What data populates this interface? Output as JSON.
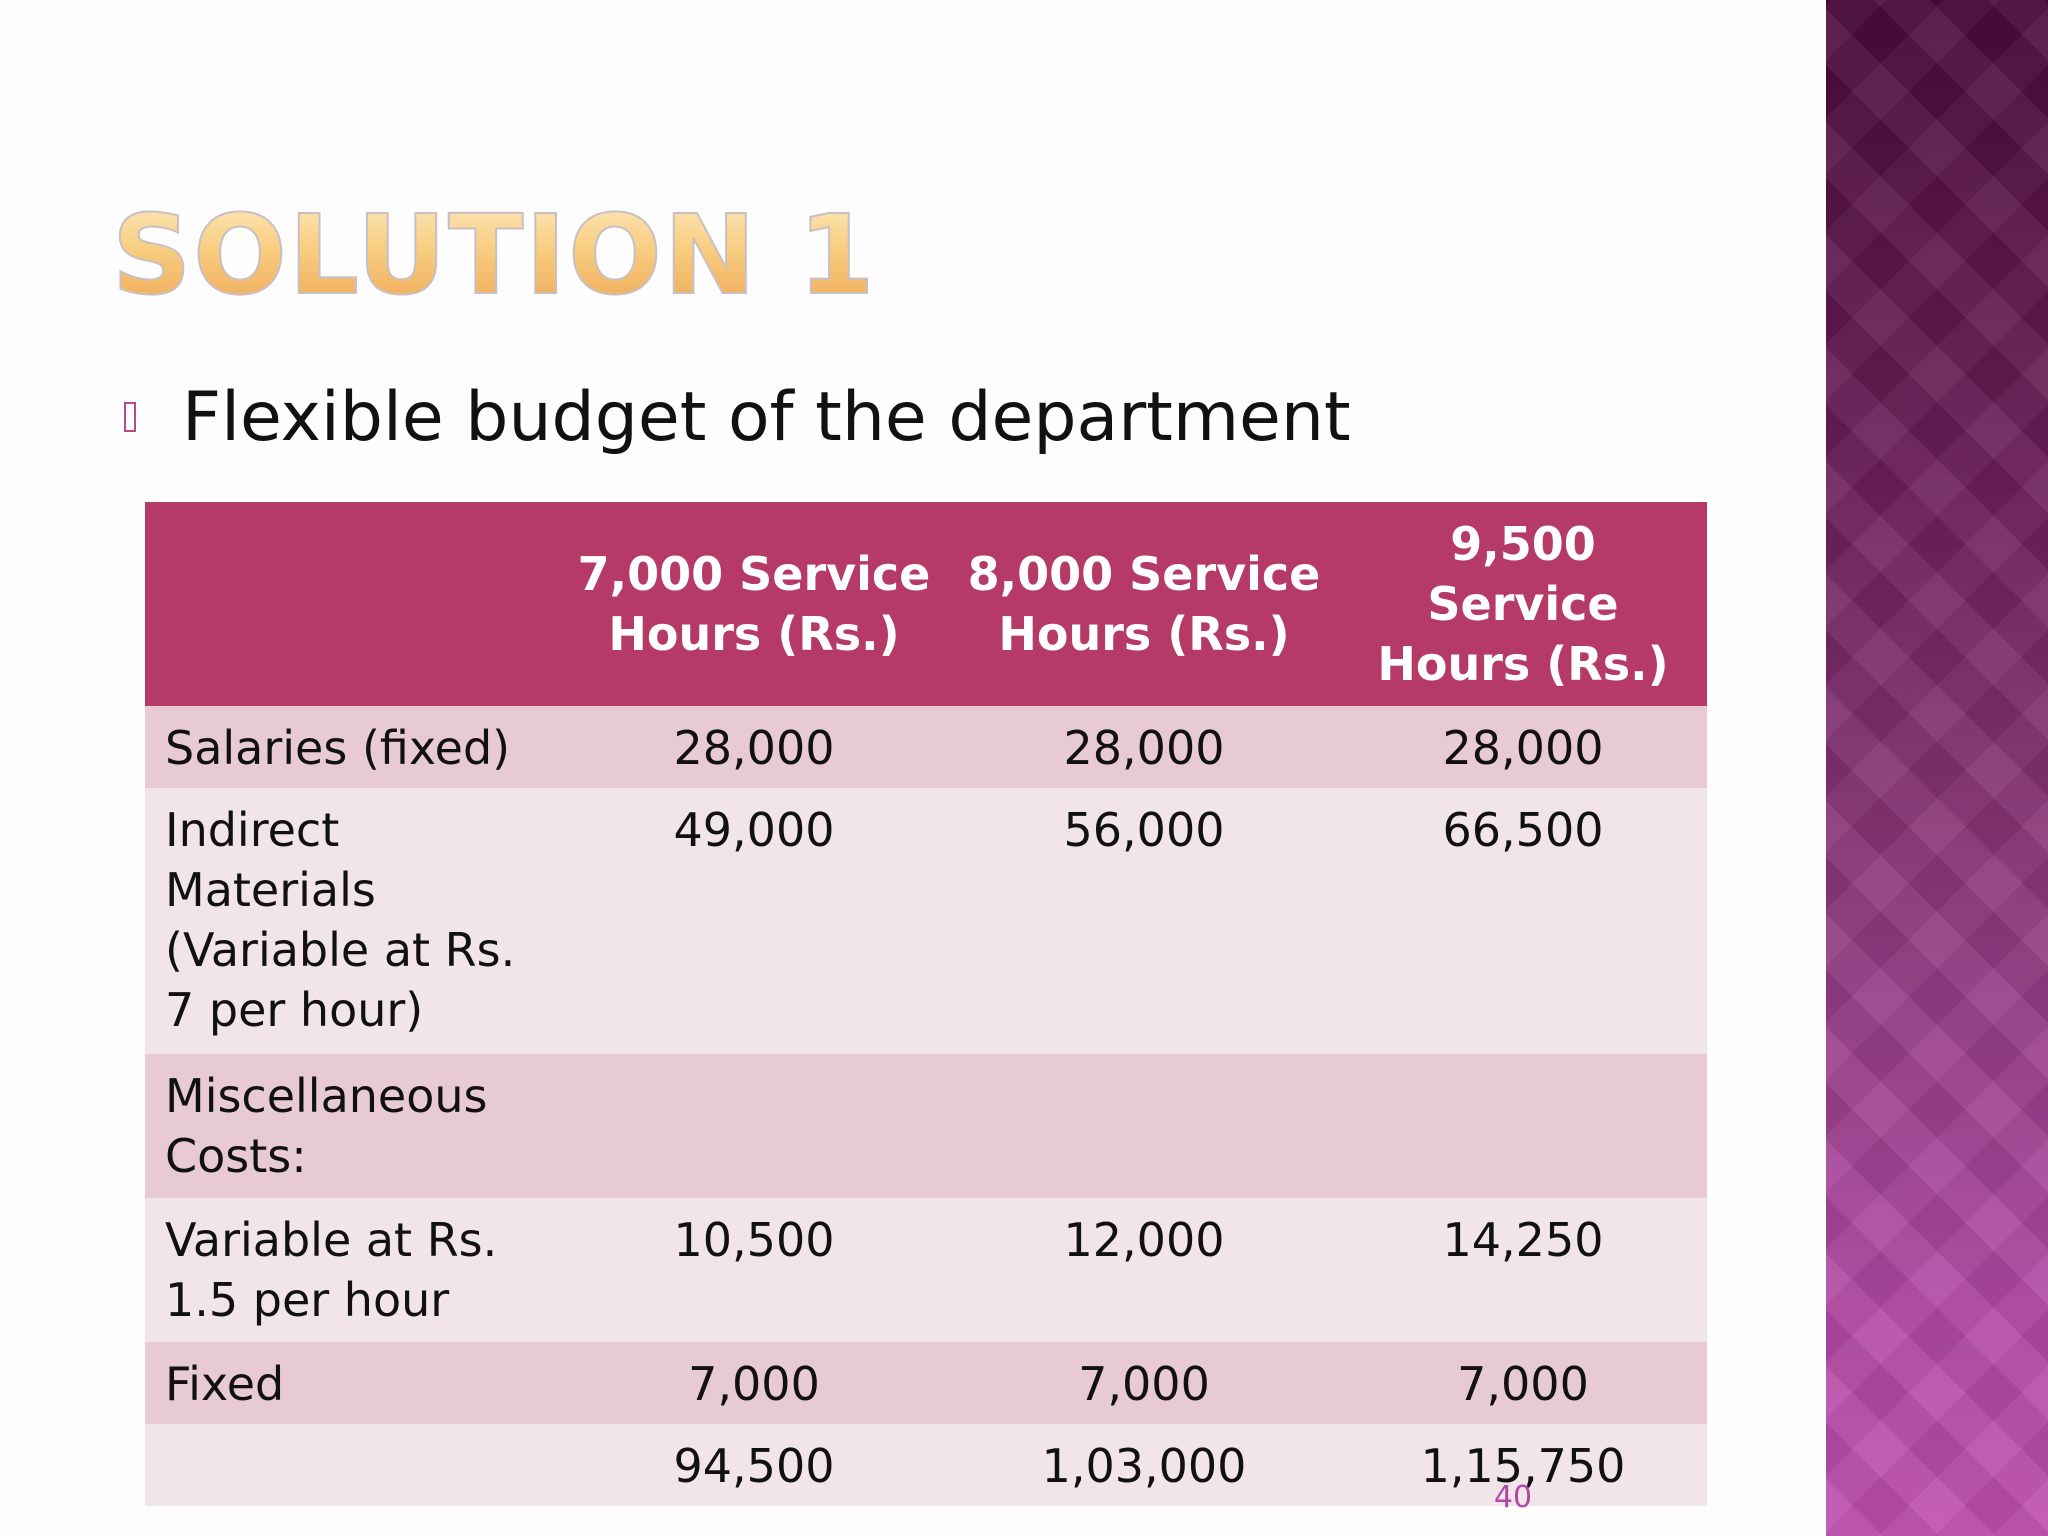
{
  "slide": {
    "title": "SOLUTION 1",
    "bullet": "Flexible budget of the department",
    "page_number": "40",
    "colors": {
      "title_fill": "#f6c06a",
      "header_bg": "#b53a68",
      "row_dark": "#e7cad4",
      "row_light": "#f2e5ea",
      "side_band": "#8e3a7f",
      "page_number": "#b049a6"
    }
  },
  "table": {
    "headers": [
      "",
      "7,000 Service Hours (Rs.)",
      "8,000 Service Hours (Rs.)",
      "9,500 Service Hours (Rs.)"
    ],
    "rows": [
      [
        "Salaries (fixed)",
        "28,000",
        "28,000",
        "28,000"
      ],
      [
        "Indirect Materials (Variable at Rs. 7 per hour)",
        "49,000",
        "56,000",
        "66,500"
      ],
      [
        "Miscellaneous Costs:",
        "",
        "",
        ""
      ],
      [
        "Variable at Rs. 1.5 per hour",
        "10,500",
        "12,000",
        "14,250"
      ],
      [
        "Fixed",
        "7,000",
        "7,000",
        "7,000"
      ],
      [
        "",
        "94,500",
        "1,03,000",
        "1,15,750"
      ]
    ]
  }
}
